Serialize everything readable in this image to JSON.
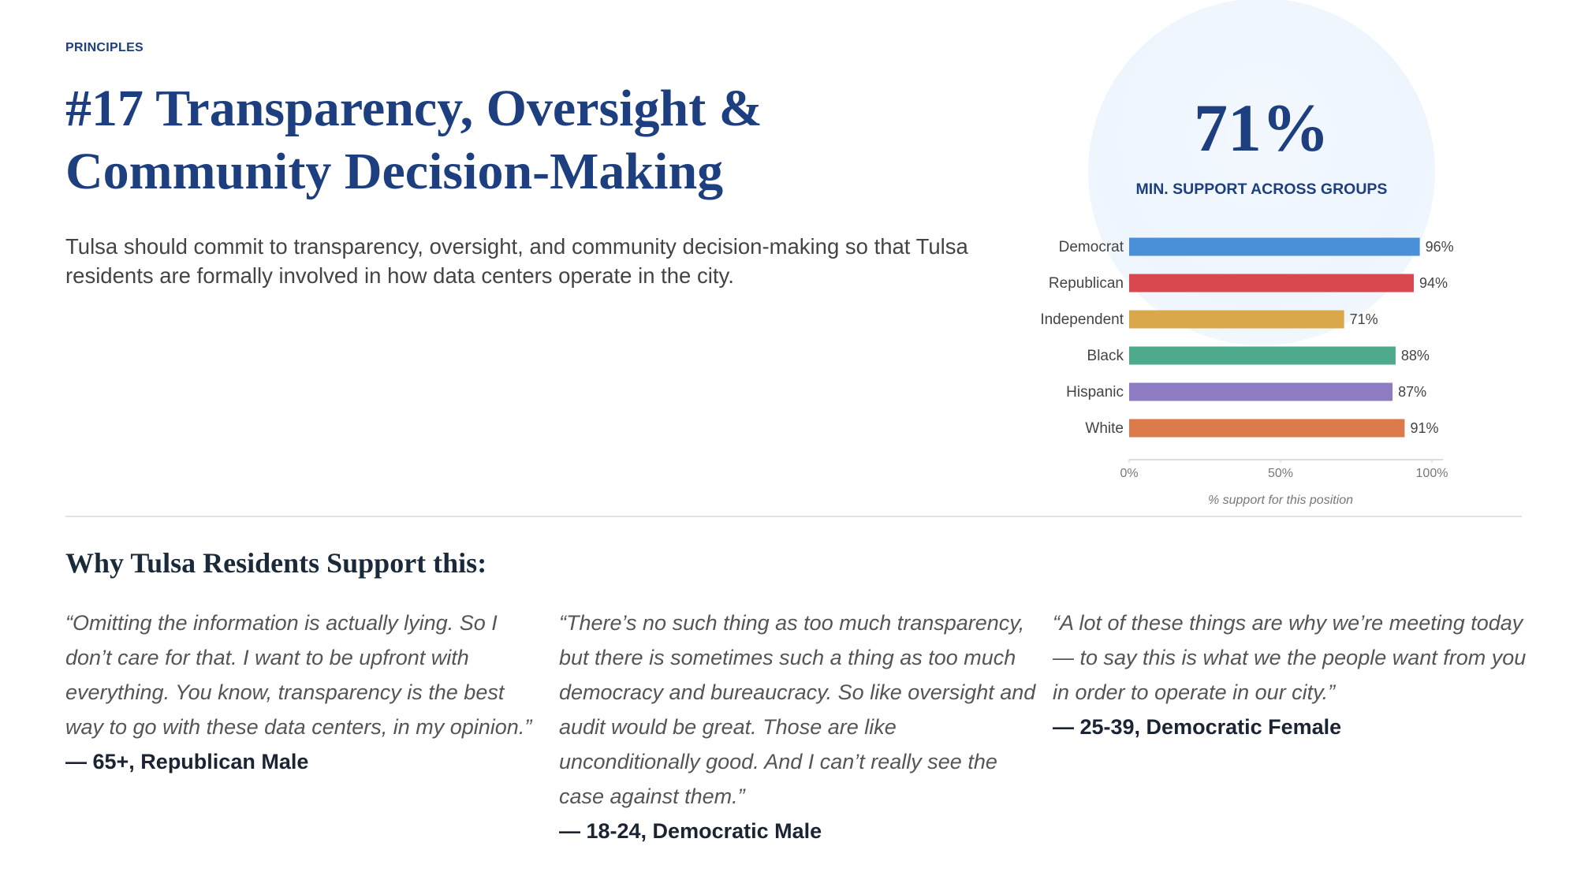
{
  "header": {
    "kicker": "PRINCIPLES",
    "title": "#17 Transparency, Oversight & Community Decision-Making",
    "description": "Tulsa should commit to transparency, oversight, and community decision-making so that Tulsa residents are formally involved in how data centers operate in the city."
  },
  "stat": {
    "value": "71%",
    "caption": "MIN. SUPPORT ACROSS GROUPS"
  },
  "chart_data": {
    "type": "hbar",
    "categories": [
      "Democrat",
      "Republican",
      "Independent",
      "Black",
      "Hispanic",
      "White"
    ],
    "values": [
      96,
      94,
      71,
      88,
      87,
      91
    ],
    "value_labels": [
      "96%",
      "94%",
      "71%",
      "88%",
      "87%",
      "91%"
    ],
    "colors": [
      "#4a90d9",
      "#d9484f",
      "#d9a84a",
      "#4daa8c",
      "#8e7cc3",
      "#dc7a4b"
    ],
    "xlim": [
      0,
      100
    ],
    "xticks": [
      {
        "value": 0,
        "label": "0%"
      },
      {
        "value": 50,
        "label": "50%"
      },
      {
        "value": 100,
        "label": "100%"
      }
    ],
    "xlabel": "% support for this position"
  },
  "section": {
    "title": "Why Tulsa Residents Support this:"
  },
  "quotes": [
    {
      "text": "“Omitting the information is actually lying. So I don’t care for that. I want to be upfront with everything. You know, transparency is the best way to go with these data centers, in my opinion.”",
      "attribution": "— 65+, Republican Male"
    },
    {
      "text": "“There’s no such thing as too much transparency, but there is sometimes such a thing as too much democracy and bureaucracy. So like oversight and audit would be great. Those are like unconditionally good. And I can’t really see the case against them.”",
      "attribution": "— 18-24, Democratic Male"
    },
    {
      "text": "“A lot of these things are why we’re meeting today — to say this is what we the people want from you in order to operate in our city.”",
      "attribution": "— 25-39, Democratic Female"
    }
  ]
}
